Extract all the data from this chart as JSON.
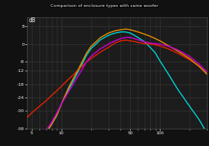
{
  "title": "Comparison of enclosure types with same woofer",
  "bg_color": "#111111",
  "plot_bg": "#1c1c1c",
  "grid_color": "#3a3a3a",
  "ylabel": "dB",
  "ylim": [
    -38,
    12
  ],
  "yticks": [
    8,
    0,
    -8,
    -12,
    -18,
    -24,
    -30,
    -38
  ],
  "ytick_labels": [
    "8",
    "0",
    "-8",
    "-12",
    "-18",
    "-24",
    "-30",
    "-38"
  ],
  "xlim": [
    4.5,
    300
  ],
  "freqs": [
    4.5,
    5,
    6,
    7,
    8,
    9,
    10,
    12,
    15,
    18,
    20,
    25,
    30,
    35,
    40,
    45,
    50,
    55,
    60,
    70,
    80,
    90,
    100,
    120,
    150,
    200,
    250,
    300
  ],
  "curve_red": [
    -33,
    -31,
    -28,
    -25.5,
    -23,
    -21,
    -19,
    -15.5,
    -11.5,
    -8,
    -6.5,
    -3.5,
    -1.5,
    0.5,
    1.5,
    1.8,
    1.5,
    1.2,
    0.8,
    0.2,
    0.0,
    -0.3,
    -0.8,
    -2.0,
    -4.0,
    -7.0,
    -10.0,
    -13.0
  ],
  "curve_orange": [
    -50,
    -48,
    -44,
    -40,
    -36,
    -32,
    -27,
    -19,
    -11,
    -4,
    -1,
    3,
    5,
    6,
    6.5,
    6.8,
    6.5,
    6,
    5.5,
    4.5,
    3.5,
    2.5,
    1.5,
    -0.5,
    -3.0,
    -6.5,
    -10.0,
    -13.5
  ],
  "curve_cyan": [
    -50,
    -48,
    -44,
    -40,
    -36,
    -32,
    -27,
    -20,
    -12,
    -5,
    -2,
    2,
    4,
    5,
    5.5,
    5.5,
    5,
    4,
    3,
    1,
    -1.5,
    -4,
    -7.5,
    -13,
    -20,
    -28,
    -34,
    -40
  ],
  "curve_magenta": [
    -50,
    -47,
    -43,
    -39,
    -35,
    -31,
    -27,
    -21,
    -14,
    -8,
    -5.5,
    -2,
    0,
    1.5,
    2.5,
    3,
    3,
    2.5,
    2,
    1,
    0.5,
    0.2,
    0.0,
    -0.8,
    -2.5,
    -5.5,
    -9.0,
    -12.5
  ],
  "color_red": "#dd2200",
  "color_orange": "#dd8800",
  "color_cyan": "#00cccc",
  "color_magenta": "#cc00cc",
  "linewidth": 1.2
}
